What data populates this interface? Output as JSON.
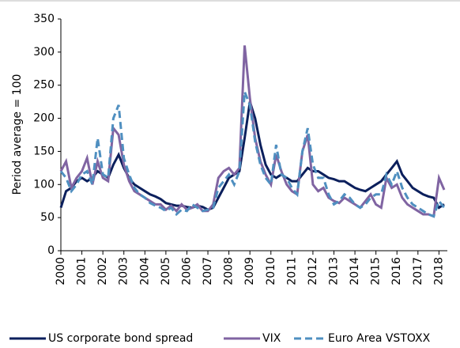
{
  "chart_data": {
    "type": "line",
    "y_label": "Period average = 100",
    "x": [
      2000,
      2000.25,
      2000.5,
      2000.75,
      2001,
      2001.25,
      2001.5,
      2001.75,
      2002,
      2002.25,
      2002.5,
      2002.75,
      2003,
      2003.25,
      2003.5,
      2003.75,
      2004,
      2004.25,
      2004.5,
      2004.75,
      2005,
      2005.25,
      2005.5,
      2005.75,
      2006,
      2006.25,
      2006.5,
      2006.75,
      2007,
      2007.25,
      2007.5,
      2007.75,
      2008,
      2008.25,
      2008.5,
      2008.75,
      2009,
      2009.25,
      2009.5,
      2009.75,
      2010,
      2010.25,
      2010.5,
      2010.75,
      2011,
      2011.25,
      2011.5,
      2011.75,
      2012,
      2012.25,
      2012.5,
      2012.75,
      2013,
      2013.25,
      2013.5,
      2013.75,
      2014,
      2014.25,
      2014.5,
      2014.75,
      2015,
      2015.25,
      2015.5,
      2015.75,
      2016,
      2016.25,
      2016.5,
      2016.75,
      2017,
      2017.25,
      2017.5,
      2017.75,
      2018,
      2018.25
    ],
    "series": [
      {
        "name": "US corporate bond spread",
        "color": "#0b1f5c",
        "dash": false,
        "values": [
          65,
          90,
          95,
          105,
          110,
          105,
          110,
          120,
          115,
          110,
          130,
          145,
          125,
          110,
          100,
          95,
          90,
          85,
          82,
          78,
          72,
          70,
          68,
          68,
          66,
          65,
          68,
          66,
          62,
          65,
          80,
          95,
          110,
          115,
          120,
          170,
          225,
          200,
          160,
          130,
          115,
          110,
          115,
          110,
          105,
          105,
          115,
          125,
          120,
          120,
          115,
          110,
          108,
          105,
          105,
          100,
          95,
          92,
          90,
          95,
          100,
          105,
          115,
          125,
          135,
          115,
          105,
          95,
          90,
          85,
          82,
          80,
          65,
          70
        ]
      },
      {
        "name": "VIX",
        "color": "#8064a2",
        "dash": false,
        "values": [
          120,
          135,
          95,
          110,
          120,
          140,
          100,
          135,
          110,
          105,
          185,
          175,
          130,
          105,
          90,
          85,
          80,
          75,
          70,
          70,
          62,
          68,
          60,
          70,
          62,
          65,
          70,
          60,
          60,
          70,
          110,
          120,
          125,
          115,
          125,
          310,
          230,
          170,
          135,
          115,
          100,
          145,
          120,
          100,
          90,
          85,
          150,
          175,
          100,
          90,
          95,
          80,
          75,
          72,
          80,
          75,
          70,
          65,
          75,
          85,
          70,
          65,
          110,
          95,
          100,
          80,
          70,
          65,
          60,
          55,
          55,
          52,
          110,
          92
        ]
      },
      {
        "name": "Euro Area VSTOXX",
        "color": "#4f8fc0",
        "dash": true,
        "values": [
          120,
          110,
          90,
          100,
          115,
          120,
          100,
          170,
          115,
          110,
          200,
          220,
          140,
          115,
          95,
          85,
          80,
          72,
          68,
          65,
          60,
          65,
          55,
          62,
          60,
          70,
          65,
          60,
          62,
          65,
          95,
          105,
          115,
          100,
          120,
          240,
          220,
          165,
          130,
          110,
          100,
          160,
          115,
          110,
          95,
          85,
          150,
          185,
          130,
          110,
          110,
          85,
          70,
          75,
          85,
          80,
          70,
          65,
          70,
          80,
          85,
          85,
          115,
          100,
          120,
          95,
          80,
          70,
          65,
          60,
          55,
          52,
          75,
          65
        ]
      }
    ],
    "xlim": [
      2000,
      2018.4
    ],
    "xticks": [
      2000,
      2001,
      2002,
      2003,
      2004,
      2005,
      2006,
      2007,
      2008,
      2009,
      2010,
      2011,
      2012,
      2013,
      2014,
      2015,
      2016,
      2017,
      2018
    ],
    "ylim": [
      0,
      350
    ],
    "yticks": [
      0,
      50,
      100,
      150,
      200,
      250,
      300,
      350
    ]
  }
}
